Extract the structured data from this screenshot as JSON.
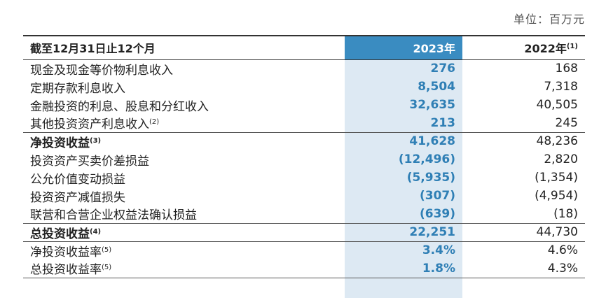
{
  "unit_label": "单位：百万元",
  "header": {
    "label": "截至12月31日止12个月",
    "cur_year": "2023年",
    "prev_year": "2022年",
    "prev_year_note": "(1)"
  },
  "rows": [
    {
      "label": "现金及现金等价物利息收入",
      "note": "",
      "cur": "276",
      "prev": "168"
    },
    {
      "label": "定期存款利息收入",
      "note": "",
      "cur": "8,504",
      "prev": "7,318"
    },
    {
      "label": "金融投资的利息、股息和分红收入",
      "note": "",
      "cur": "32,635",
      "prev": "40,505"
    },
    {
      "label": "其他投资资产利息收入",
      "note": "(2)",
      "cur": "213",
      "prev": "245"
    },
    {
      "label": "净投资收益",
      "note": "(3)",
      "cur": "41,628",
      "prev": "48,236"
    },
    {
      "label": "投资资产买卖价差损益",
      "note": "",
      "cur": "(12,496)",
      "prev": "2,820"
    },
    {
      "label": "公允价值变动损益",
      "note": "",
      "cur": "(5,935)",
      "prev": "(1,354)"
    },
    {
      "label": "投资资产减值损失",
      "note": "",
      "cur": "(307)",
      "prev": "(4,954)"
    },
    {
      "label": "联营和合营企业权益法确认损益",
      "note": "",
      "cur": "(639)",
      "prev": "(18)"
    },
    {
      "label": "总投资收益",
      "note": "(4)",
      "cur": "22,251",
      "prev": "44,730"
    },
    {
      "label": "净投资收益率",
      "note": "(5)",
      "cur": "3.4%",
      "prev": "4.6%"
    },
    {
      "label": "总投资收益率",
      "note": "(5)",
      "cur": "1.8%",
      "prev": "4.3%"
    }
  ]
}
